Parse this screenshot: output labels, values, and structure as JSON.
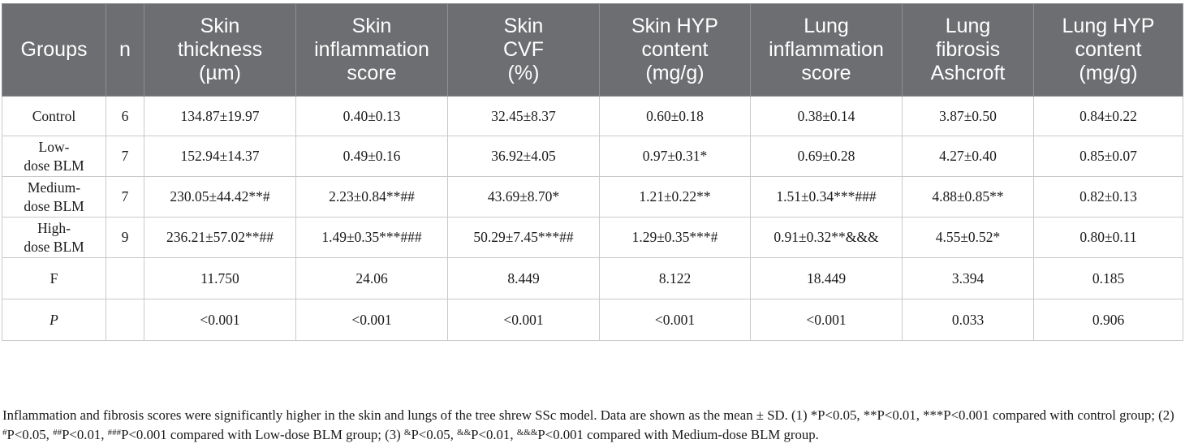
{
  "table": {
    "headers": [
      [
        "Groups"
      ],
      [
        "n"
      ],
      [
        "Skin",
        "thickness",
        "(µm)"
      ],
      [
        "Skin",
        "inflammation",
        "score"
      ],
      [
        "Skin",
        "CVF",
        "(%)"
      ],
      [
        "Skin HYP",
        "content",
        "(mg/g)"
      ],
      [
        "Lung",
        "inflammation",
        "score"
      ],
      [
        "Lung",
        "fibrosis",
        "Ashcroft"
      ],
      [
        "Lung HYP",
        "content",
        "(mg/g)"
      ]
    ],
    "rows": [
      {
        "group": [
          "Control"
        ],
        "n": "6",
        "values": [
          "134.87±19.97",
          "0.40±0.13",
          "32.45±8.37",
          "0.60±0.18",
          "0.38±0.14",
          "3.87±0.50",
          "0.84±0.22"
        ]
      },
      {
        "group": [
          "Low-",
          "dose BLM"
        ],
        "n": "7",
        "values": [
          "152.94±14.37",
          "0.49±0.16",
          "36.92±4.05",
          "0.97±0.31*",
          "0.69±0.28",
          "4.27±0.40",
          "0.85±0.07"
        ]
      },
      {
        "group": [
          "Medium-",
          "dose BLM"
        ],
        "n": "7",
        "values": [
          "230.05±44.42**#",
          "2.23±0.84**##",
          "43.69±8.70*",
          "1.21±0.22**",
          "1.51±0.34***###",
          "4.88±0.85**",
          "0.82±0.13"
        ]
      },
      {
        "group": [
          "High-",
          "dose BLM"
        ],
        "n": "9",
        "values": [
          "236.21±57.02**##",
          "1.49±0.35***###",
          "50.29±7.45***##",
          "1.29±0.35***#",
          "0.91±0.32**&&&",
          "4.55±0.52*",
          "0.80±0.11"
        ]
      }
    ],
    "stats": [
      {
        "label": "F",
        "italic": false,
        "values": [
          "11.750",
          "24.06",
          "8.449",
          "8.122",
          "18.449",
          "3.394",
          "0.185"
        ]
      },
      {
        "label": "P",
        "italic": true,
        "values": [
          "<0.001",
          "<0.001",
          "<0.001",
          "<0.001",
          "<0.001",
          "0.033",
          "0.906"
        ]
      }
    ]
  },
  "footnote": {
    "intro": "Inflammation and fibrosis scores were significantly higher in the skin and lungs of the tree shrew SSc model. Data are shown as the mean ± SD. (1) *P<0.05, **P<0.01, ***P<0.001 compared with control group; (2) ",
    "p1_sup": "#",
    "p1": "P<0.05, ",
    "p2_sup": "##",
    "p2": "P<0.01, ",
    "p3_sup": "###",
    "p3": "P<0.001 compared with Low-dose BLM group; (3) ",
    "q1_sup": "&",
    "q1": "P<0.05, ",
    "q2_sup": "&&",
    "q2": "P<0.01, ",
    "q3_sup": "&&&",
    "q3": "P<0.001 compared with Medium-dose BLM group."
  }
}
